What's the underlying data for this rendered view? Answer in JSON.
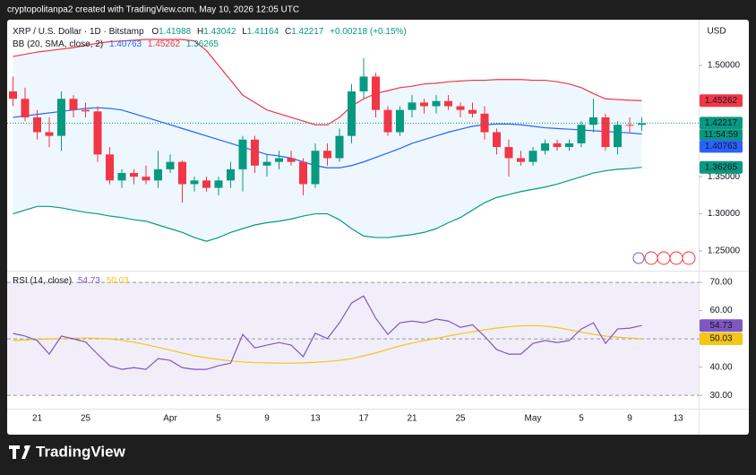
{
  "header": "cryptopolitanpa2 created with TradingView.com, May 10, 2026 12:05 UTC",
  "brand": "TradingView",
  "chart_data": [
    {
      "type": "candlestick",
      "title": "XRP / U.S. Dollar · 1D · Bitstamp",
      "ohlc_labels": [
        "O",
        "H",
        "L",
        "C"
      ],
      "change_text": "+0.00218 (+0.15%)",
      "currency": "USD",
      "countdown": "11:54:59",
      "up_color": "#089981",
      "down_color": "#f23645",
      "categories": [
        null,
        null,
        "21",
        null,
        null,
        null,
        "25",
        null,
        null,
        null,
        null,
        null,
        null,
        "Apr",
        null,
        null,
        null,
        "5",
        null,
        null,
        null,
        "9",
        null,
        null,
        null,
        "13",
        null,
        null,
        null,
        "17",
        null,
        null,
        null,
        "21",
        null,
        null,
        null,
        "25",
        null,
        null,
        null,
        null,
        null,
        "May",
        null,
        null,
        null,
        "5",
        null,
        null,
        null,
        "9",
        null,
        null,
        null,
        "13"
      ],
      "open": [
        1.465,
        1.455,
        1.43,
        1.41,
        1.405,
        1.455,
        1.44,
        1.438,
        1.38,
        1.345,
        1.355,
        1.35,
        1.345,
        1.36,
        1.37,
        1.34,
        1.345,
        1.335,
        1.345,
        1.36,
        1.4,
        1.365,
        1.37,
        1.375,
        1.37,
        1.34,
        1.385,
        1.375,
        1.405,
        1.465,
        1.485,
        1.44,
        1.41,
        1.44,
        1.45,
        1.445,
        1.452,
        1.445,
        1.44,
        1.435,
        1.41,
        1.39,
        1.375,
        1.37,
        1.385,
        1.395,
        1.39,
        1.395,
        1.42,
        1.43,
        1.39,
        1.42,
        1.41988,
        null,
        null,
        null
      ],
      "high": [
        1.485,
        1.47,
        1.44,
        1.43,
        1.465,
        1.46,
        1.45,
        1.445,
        1.39,
        1.36,
        1.36,
        1.365,
        1.385,
        1.38,
        1.372,
        1.35,
        1.35,
        1.35,
        1.37,
        1.405,
        1.405,
        1.38,
        1.385,
        1.385,
        1.375,
        1.395,
        1.395,
        1.415,
        1.475,
        1.51,
        1.49,
        1.445,
        1.445,
        1.46,
        1.455,
        1.46,
        1.46,
        1.45,
        1.45,
        1.445,
        1.415,
        1.4,
        1.385,
        1.39,
        1.4,
        1.4,
        1.4,
        1.425,
        1.455,
        1.435,
        1.425,
        1.43,
        1.43042,
        null,
        null,
        null
      ],
      "low": [
        1.445,
        1.425,
        1.4,
        1.39,
        1.385,
        1.43,
        1.43,
        1.37,
        1.34,
        1.335,
        1.34,
        1.34,
        1.335,
        1.355,
        1.315,
        1.33,
        1.33,
        1.325,
        1.335,
        1.33,
        1.355,
        1.35,
        1.36,
        1.365,
        1.325,
        1.335,
        1.365,
        1.37,
        1.395,
        1.455,
        1.43,
        1.405,
        1.405,
        1.43,
        1.435,
        1.435,
        1.44,
        1.43,
        1.43,
        1.4,
        1.38,
        1.35,
        1.365,
        1.365,
        1.38,
        1.385,
        1.385,
        1.39,
        1.41,
        1.385,
        1.38,
        1.41,
        1.41164,
        null,
        null,
        null
      ],
      "close": [
        1.455,
        1.43,
        1.41,
        1.405,
        1.455,
        1.44,
        1.438,
        1.38,
        1.345,
        1.355,
        1.35,
        1.345,
        1.36,
        1.37,
        1.34,
        1.345,
        1.335,
        1.345,
        1.36,
        1.4,
        1.365,
        1.37,
        1.375,
        1.37,
        1.34,
        1.385,
        1.375,
        1.405,
        1.465,
        1.485,
        1.44,
        1.41,
        1.44,
        1.45,
        1.445,
        1.452,
        1.445,
        1.44,
        1.435,
        1.41,
        1.39,
        1.375,
        1.37,
        1.385,
        1.395,
        1.39,
        1.395,
        1.42,
        1.43,
        1.39,
        1.42,
        1.41988,
        1.42217,
        null,
        null,
        null
      ],
      "indicator": {
        "name": "BB (20, SMA, close, 2)",
        "basis_color": "#2962ff",
        "upper_color": "#f23645",
        "lower_color": "#089981",
        "basis": [
          1.43,
          1.432,
          1.434,
          1.436,
          1.438,
          1.44,
          1.442,
          1.443,
          1.442,
          1.44,
          1.435,
          1.43,
          1.425,
          1.42,
          1.415,
          1.41,
          1.405,
          1.4,
          1.395,
          1.39,
          1.385,
          1.38,
          1.378,
          1.375,
          1.37,
          1.365,
          1.362,
          1.362,
          1.365,
          1.37,
          1.376,
          1.382,
          1.388,
          1.395,
          1.4,
          1.405,
          1.41,
          1.414,
          1.418,
          1.42,
          1.421,
          1.421,
          1.42,
          1.418,
          1.416,
          1.415,
          1.414,
          1.413,
          1.412,
          1.411,
          1.41,
          1.409,
          1.40763,
          null,
          null,
          null
        ],
        "upper": [
          1.512,
          1.515,
          1.518,
          1.52,
          1.522,
          1.524,
          1.527,
          1.53,
          1.532,
          1.533,
          1.534,
          1.535,
          1.535,
          1.535,
          1.535,
          1.533,
          1.52,
          1.5,
          1.48,
          1.46,
          1.45,
          1.44,
          1.435,
          1.43,
          1.425,
          1.42,
          1.42,
          1.43,
          1.445,
          1.455,
          1.462,
          1.466,
          1.47,
          1.472,
          1.475,
          1.476,
          1.478,
          1.479,
          1.48,
          1.48,
          1.481,
          1.481,
          1.481,
          1.48,
          1.48,
          1.478,
          1.475,
          1.47,
          1.462,
          1.455,
          1.454,
          1.453,
          1.45262,
          null,
          null,
          null
        ],
        "lower": [
          1.3,
          1.305,
          1.31,
          1.31,
          1.308,
          1.305,
          1.302,
          1.3,
          1.297,
          1.295,
          1.292,
          1.29,
          1.285,
          1.28,
          1.275,
          1.268,
          1.263,
          1.268,
          1.275,
          1.28,
          1.285,
          1.288,
          1.29,
          1.293,
          1.297,
          1.3,
          1.3,
          1.292,
          1.28,
          1.27,
          1.268,
          1.268,
          1.27,
          1.272,
          1.275,
          1.28,
          1.288,
          1.295,
          1.305,
          1.315,
          1.322,
          1.326,
          1.33,
          1.333,
          1.336,
          1.34,
          1.345,
          1.35,
          1.355,
          1.358,
          1.36,
          1.361,
          1.36265,
          null,
          null,
          null
        ]
      },
      "ylim": [
        1.2258,
        1.5616
      ],
      "yticks": [
        {
          "value": 1.25,
          "label": "1.25000"
        },
        {
          "value": 1.3,
          "label": "1.30000"
        },
        {
          "value": 1.35,
          "label": "1.35000"
        },
        {
          "value": 1.5,
          "label": "1.50000"
        }
      ]
    },
    {
      "type": "line",
      "title": "RSI (14, close)",
      "series": [
        {
          "color": "#7e57c2",
          "values": [
            51.9,
            51,
            49.4,
            44.6,
            51,
            50,
            48.9,
            44.6,
            40.5,
            39.2,
            39.8,
            39.2,
            43,
            42.4,
            39.8,
            39.2,
            39.2,
            40.5,
            41.4,
            51.6,
            46.8,
            47.8,
            48.7,
            47.8,
            43.7,
            52,
            50.1,
            55.7,
            62.7,
            65.2,
            57.3,
            51.6,
            55.7,
            56.3,
            55.7,
            57,
            56.3,
            54.1,
            55,
            50.9,
            46.2,
            44.6,
            44.6,
            48.4,
            49.4,
            48.7,
            49.4,
            53.5,
            55.7,
            48.4,
            53.5,
            53.8,
            54.73,
            null,
            null,
            null
          ]
        },
        {
          "color": "#f5c518",
          "values": [
            49.4,
            49.6,
            49.8,
            50,
            50.1,
            50.2,
            50.3,
            50.2,
            50,
            49.5,
            48.8,
            48,
            47,
            46,
            45,
            44,
            43.3,
            42.7,
            42.2,
            41.8,
            41.6,
            41.5,
            41.4,
            41.4,
            41.5,
            41.7,
            42,
            42.4,
            43,
            44,
            45,
            46.3,
            47.5,
            48.5,
            49.4,
            50.2,
            51,
            51.8,
            52.5,
            53.2,
            53.8,
            54.3,
            54.6,
            54.7,
            54.5,
            54,
            53.2,
            52.4,
            51.6,
            51,
            50.6,
            50.3,
            50.03,
            null,
            null,
            null
          ]
        }
      ],
      "bands": {
        "upper": 70,
        "middle": 50,
        "lower": 30
      },
      "ylim": [
        25.6,
        73.2
      ],
      "yticks": [
        {
          "value": 70,
          "label": "70.00"
        },
        {
          "value": 60,
          "label": "60.00"
        },
        {
          "value": 50,
          "label": "50.00"
        },
        {
          "value": 40,
          "label": "40.00"
        },
        {
          "value": 30,
          "label": "30.00"
        }
      ]
    }
  ]
}
